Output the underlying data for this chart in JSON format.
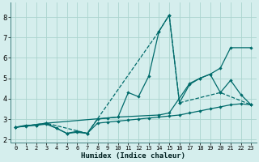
{
  "xlabel": "Humidex (Indice chaleur)",
  "bg_color": "#d5eeed",
  "grid_color": "#aad4cf",
  "line_color": "#006b6b",
  "xlim": [
    -0.5,
    23.5
  ],
  "ylim": [
    1.85,
    8.7
  ],
  "xtick_vals": [
    0,
    1,
    2,
    3,
    4,
    5,
    6,
    7,
    8,
    9,
    10,
    11,
    12,
    13,
    14,
    15,
    16,
    17,
    18,
    19,
    20,
    21,
    22,
    23
  ],
  "ytick_vals": [
    2,
    3,
    4,
    5,
    6,
    7,
    8
  ],
  "lines": [
    {
      "x": [
        0,
        1,
        2,
        3,
        4,
        5,
        6,
        7,
        8,
        9,
        10,
        11,
        12,
        13,
        14,
        15,
        16,
        17,
        18,
        19,
        20,
        21,
        22,
        23
      ],
      "y": [
        2.6,
        2.7,
        2.7,
        2.8,
        2.55,
        2.3,
        2.4,
        2.3,
        3.0,
        3.05,
        3.1,
        4.3,
        4.1,
        5.1,
        7.3,
        8.1,
        3.8,
        4.7,
        5.0,
        5.2,
        4.3,
        4.9,
        4.2,
        3.7
      ],
      "ls": "-",
      "lw": 0.9
    },
    {
      "x": [
        0,
        1,
        2,
        3,
        4,
        5,
        6,
        7,
        8,
        9,
        10,
        11,
        12,
        13,
        14,
        15,
        16,
        17,
        18,
        19,
        20,
        21,
        22,
        23
      ],
      "y": [
        2.6,
        2.65,
        2.7,
        2.75,
        2.55,
        2.3,
        2.35,
        2.3,
        2.8,
        2.85,
        2.9,
        2.95,
        3.0,
        3.05,
        3.1,
        3.15,
        3.2,
        3.3,
        3.4,
        3.5,
        3.6,
        3.7,
        3.75,
        3.7
      ],
      "ls": "-",
      "lw": 0.9
    },
    {
      "x": [
        0,
        3,
        7,
        14,
        15,
        16,
        20,
        23
      ],
      "y": [
        2.6,
        2.8,
        2.3,
        7.3,
        8.1,
        3.8,
        4.3,
        3.7
      ],
      "ls": "--",
      "lw": 0.9
    },
    {
      "x": [
        0,
        3,
        10,
        14,
        15,
        17,
        18,
        19,
        20,
        21,
        23
      ],
      "y": [
        2.6,
        2.8,
        3.1,
        3.2,
        3.3,
        4.75,
        5.0,
        5.2,
        5.5,
        6.5,
        6.5
      ],
      "ls": "-",
      "lw": 0.9
    }
  ]
}
